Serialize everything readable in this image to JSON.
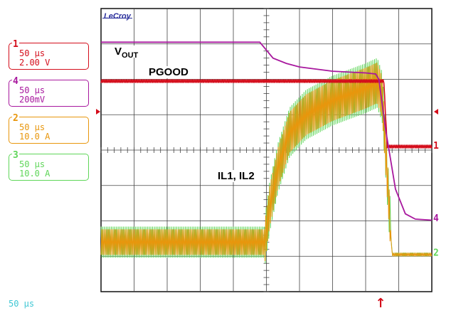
{
  "scope": {
    "brand": "LeCroy",
    "timebase": "50 µs",
    "channels": [
      {
        "num": "1",
        "line1": "50 µs",
        "line2": "2.00 V",
        "color": "#d40d1b"
      },
      {
        "num": "4",
        "line1": "50 µs",
        "line2": "200mV",
        "color": "#a8189e"
      },
      {
        "num": "2",
        "line1": "50 µs",
        "line2": "10.0 A",
        "color": "#e8960c"
      },
      {
        "num": "3",
        "line1": "50 µs",
        "line2": "10.0 A",
        "color": "#5fd659"
      }
    ],
    "trace_markers": [
      "1",
      "4",
      "2"
    ],
    "trigger_marker": "↑"
  },
  "chart_data": {
    "type": "line",
    "title": "",
    "xlabel": "",
    "ylabel": "",
    "x_divisions": 10,
    "y_divisions": 8,
    "grid": true,
    "series": [
      {
        "name": "",
        "label": "VOUT",
        "channel": "4",
        "points": [
          [
            0,
            7.05
          ],
          [
            4.8,
            7.05
          ],
          [
            5.2,
            6.6
          ],
          [
            5.6,
            6.45
          ],
          [
            6.0,
            6.35
          ],
          [
            7.0,
            6.23
          ],
          [
            8.0,
            6.18
          ],
          [
            8.3,
            6.15
          ],
          [
            8.4,
            6.0
          ],
          [
            8.6,
            4.6
          ],
          [
            8.9,
            2.9
          ],
          [
            9.2,
            2.2
          ],
          [
            9.5,
            2.05
          ],
          [
            10,
            2.02
          ]
        ]
      },
      {
        "name": "",
        "label": "PGOOD",
        "channel": "1",
        "points": [
          [
            0,
            5.95
          ],
          [
            8.55,
            5.95
          ],
          [
            8.65,
            4.1
          ],
          [
            10,
            4.1
          ]
        ]
      },
      {
        "name": "",
        "label": "IL1, IL2",
        "channel": "2",
        "avg_points": [
          [
            0,
            1.4
          ],
          [
            4.95,
            1.4
          ],
          [
            5.1,
            2.4
          ],
          [
            5.35,
            3.5
          ],
          [
            5.7,
            4.5
          ],
          [
            6.2,
            5.0
          ],
          [
            7.0,
            5.4
          ],
          [
            8.0,
            5.75
          ],
          [
            8.35,
            5.9
          ],
          [
            8.5,
            5.5
          ],
          [
            8.8,
            1.05
          ],
          [
            10,
            1.05
          ]
        ],
        "ripple_amplitude": [
          0.4,
          0.8
        ]
      }
    ],
    "annotations": [
      "VOUT",
      "PGOOD",
      "IL1, IL2"
    ]
  }
}
